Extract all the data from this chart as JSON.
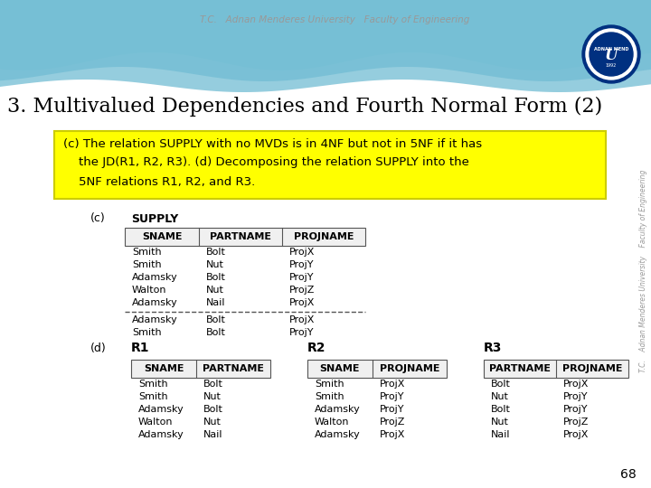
{
  "title": "3. Multivalued Dependencies and Fourth Normal Form (2)",
  "header_text": "T.C.   Adnan Menderes University   Faculty of Engineering",
  "bg_color": "#ffffff",
  "desc_lines": [
    "(c) The relation SUPPLY with no MVDs is in 4NF but not in 5NF if it has",
    "    the JD(R1, R2, R3). (d) Decomposing the relation SUPPLY into the",
    "    5NF relations R1, R2, and R3."
  ],
  "supply_label": "SUPPLY",
  "supply_cols": [
    "SNAME",
    "PARTNAME",
    "PROJNAME"
  ],
  "supply_rows": [
    [
      "Smith",
      "Bolt",
      "ProjX"
    ],
    [
      "Smith",
      "Nut",
      "ProjY"
    ],
    [
      "Adamsky",
      "Bolt",
      "ProjY"
    ],
    [
      "Walton",
      "Nut",
      "ProjZ"
    ],
    [
      "Adamsky",
      "Nail",
      "ProjX"
    ]
  ],
  "supply_rows_below": [
    [
      "Adamsky",
      "Bolt",
      "ProjX"
    ],
    [
      "Smith",
      "Bolt",
      "ProjY"
    ]
  ],
  "r1_label": "R1",
  "r1_cols": [
    "SNAME",
    "PARTNAME"
  ],
  "r1_rows": [
    [
      "Smith",
      "Bolt"
    ],
    [
      "Smith",
      "Nut"
    ],
    [
      "Adamsky",
      "Bolt"
    ],
    [
      "Walton",
      "Nut"
    ],
    [
      "Adamsky",
      "Nail"
    ]
  ],
  "r2_label": "R2",
  "r2_cols": [
    "SNAME",
    "PROJNAME"
  ],
  "r2_rows": [
    [
      "Smith",
      "ProjX"
    ],
    [
      "Smith",
      "ProjY"
    ],
    [
      "Adamsky",
      "ProjY"
    ],
    [
      "Walton",
      "ProjZ"
    ],
    [
      "Adamsky",
      "ProjX"
    ]
  ],
  "r3_label": "R3",
  "r3_cols": [
    "PARTNAME",
    "PROJNAME"
  ],
  "r3_rows": [
    [
      "Bolt",
      "ProjX"
    ],
    [
      "Nut",
      "ProjY"
    ],
    [
      "Bolt",
      "ProjY"
    ],
    [
      "Nut",
      "ProjZ"
    ],
    [
      "Nail",
      "ProjX"
    ]
  ],
  "label_c": "(c)",
  "label_d": "(d)",
  "page_number": "68",
  "wave_colors": [
    "#c8eaf0",
    "#a0d8e8",
    "#7ec8dc",
    "#5ab8d0"
  ],
  "right_text": "T.C.    Adnan Menderes University    Faculty of Engineering"
}
